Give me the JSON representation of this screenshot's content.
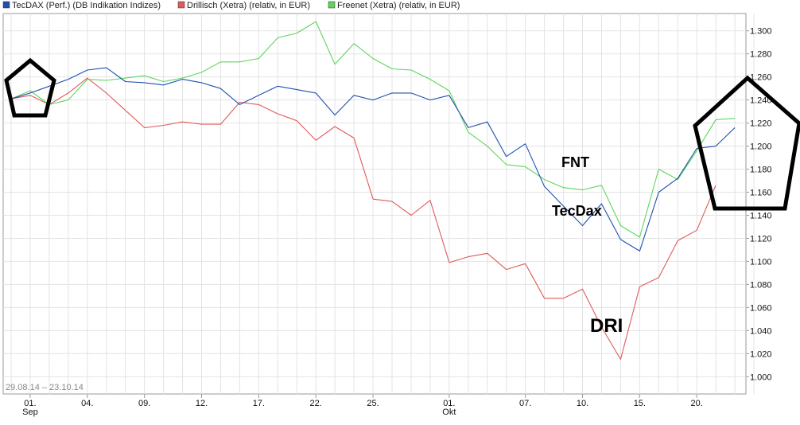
{
  "chart_data": {
    "type": "line",
    "title": "",
    "xlabel": "",
    "ylabel": "",
    "date_range_label": "29.08.14 – 23.10.14",
    "ylim": [
      0.985,
      1.315
    ],
    "y_ticks": [
      1.0,
      1.02,
      1.04,
      1.06,
      1.08,
      1.1,
      1.12,
      1.14,
      1.16,
      1.18,
      1.2,
      1.22,
      1.24,
      1.26,
      1.28,
      1.3
    ],
    "y_tick_labels": [
      "1.000",
      "1.020",
      "1.040",
      "1.060",
      "1.080",
      "1.100",
      "1.120",
      "1.140",
      "1.160",
      "1.180",
      "1.200",
      "1.220",
      "1.240",
      "1.260",
      "1.280",
      "1.300"
    ],
    "x_dates": [
      "2014-08-29",
      "2014-09-01",
      "2014-09-02",
      "2014-09-03",
      "2014-09-04",
      "2014-09-05",
      "2014-09-08",
      "2014-09-09",
      "2014-09-10",
      "2014-09-11",
      "2014-09-12",
      "2014-09-15",
      "2014-09-16",
      "2014-09-17",
      "2014-09-18",
      "2014-09-19",
      "2014-09-22",
      "2014-09-23",
      "2014-09-24",
      "2014-09-25",
      "2014-09-26",
      "2014-09-29",
      "2014-09-30",
      "2014-10-01",
      "2014-10-02",
      "2014-10-03",
      "2014-10-06",
      "2014-10-07",
      "2014-10-08",
      "2014-10-09",
      "2014-10-10",
      "2014-10-13",
      "2014-10-14",
      "2014-10-15",
      "2014-10-16",
      "2014-10-17",
      "2014-10-20",
      "2014-10-21",
      "2014-10-22",
      "2014-10-23"
    ],
    "x_tick_labels": [
      {
        "date": "2014-09-01",
        "label": "01.",
        "sub": "Sep"
      },
      {
        "date": "2014-09-04",
        "label": "04.",
        "sub": ""
      },
      {
        "date": "2014-09-09",
        "label": "09.",
        "sub": ""
      },
      {
        "date": "2014-09-12",
        "label": "12.",
        "sub": ""
      },
      {
        "date": "2014-09-17",
        "label": "17.",
        "sub": ""
      },
      {
        "date": "2014-09-22",
        "label": "22.",
        "sub": ""
      },
      {
        "date": "2014-09-25",
        "label": "25.",
        "sub": ""
      },
      {
        "date": "2014-10-01",
        "label": "01.",
        "sub": "Okt"
      },
      {
        "date": "2014-10-07",
        "label": "07.",
        "sub": ""
      },
      {
        "date": "2014-10-10",
        "label": "10.",
        "sub": ""
      },
      {
        "date": "2014-10-15",
        "label": "15.",
        "sub": ""
      },
      {
        "date": "2014-10-20",
        "label": "20.",
        "sub": ""
      }
    ],
    "grid": true,
    "legend_position": "top",
    "series": [
      {
        "name": "TecDAX (Perf.) (DB Indikation Indizes)",
        "color": "#1f4fb0",
        "values": [
          1.241,
          1.246,
          1.252,
          1.258,
          1.266,
          1.268,
          1.256,
          1.255,
          1.253,
          1.258,
          1.255,
          1.25,
          1.236,
          1.244,
          1.252,
          1.249,
          1.246,
          1.227,
          1.244,
          1.24,
          1.246,
          1.246,
          1.24,
          1.244,
          1.216,
          1.221,
          1.191,
          1.202,
          1.165,
          1.148,
          1.131,
          1.15,
          1.119,
          1.109,
          1.16,
          1.172,
          1.198,
          1.2,
          1.216,
          null
        ]
      },
      {
        "name": "Drillisch (Xetra) (relativ, in EUR)",
        "color": "#e05a5a",
        "values": [
          1.241,
          1.244,
          1.236,
          1.246,
          1.259,
          1.246,
          1.231,
          1.216,
          1.218,
          1.221,
          1.219,
          1.219,
          1.238,
          1.236,
          1.228,
          1.222,
          1.205,
          1.217,
          1.207,
          1.154,
          1.152,
          1.14,
          1.153,
          1.099,
          1.104,
          1.107,
          1.093,
          1.098,
          1.068,
          1.068,
          1.076,
          1.043,
          1.015,
          1.078,
          1.086,
          1.118,
          1.127,
          1.166,
          null,
          null
        ]
      },
      {
        "name": "Freenet (Xetra) (relativ, in EUR)",
        "color": "#5cd65c",
        "values": [
          1.241,
          1.248,
          1.236,
          1.24,
          1.258,
          1.257,
          1.259,
          1.261,
          1.256,
          1.259,
          1.264,
          1.273,
          1.273,
          1.276,
          1.294,
          1.298,
          1.308,
          1.271,
          1.289,
          1.276,
          1.267,
          1.266,
          1.258,
          1.248,
          1.212,
          1.2,
          1.184,
          1.182,
          1.171,
          1.164,
          1.162,
          1.166,
          1.131,
          1.121,
          1.18,
          1.171,
          1.196,
          1.223,
          1.224,
          null
        ]
      }
    ],
    "annotations": [
      {
        "text": "FNT"
      },
      {
        "text": "TecDax"
      },
      {
        "text": "DRI"
      }
    ]
  }
}
